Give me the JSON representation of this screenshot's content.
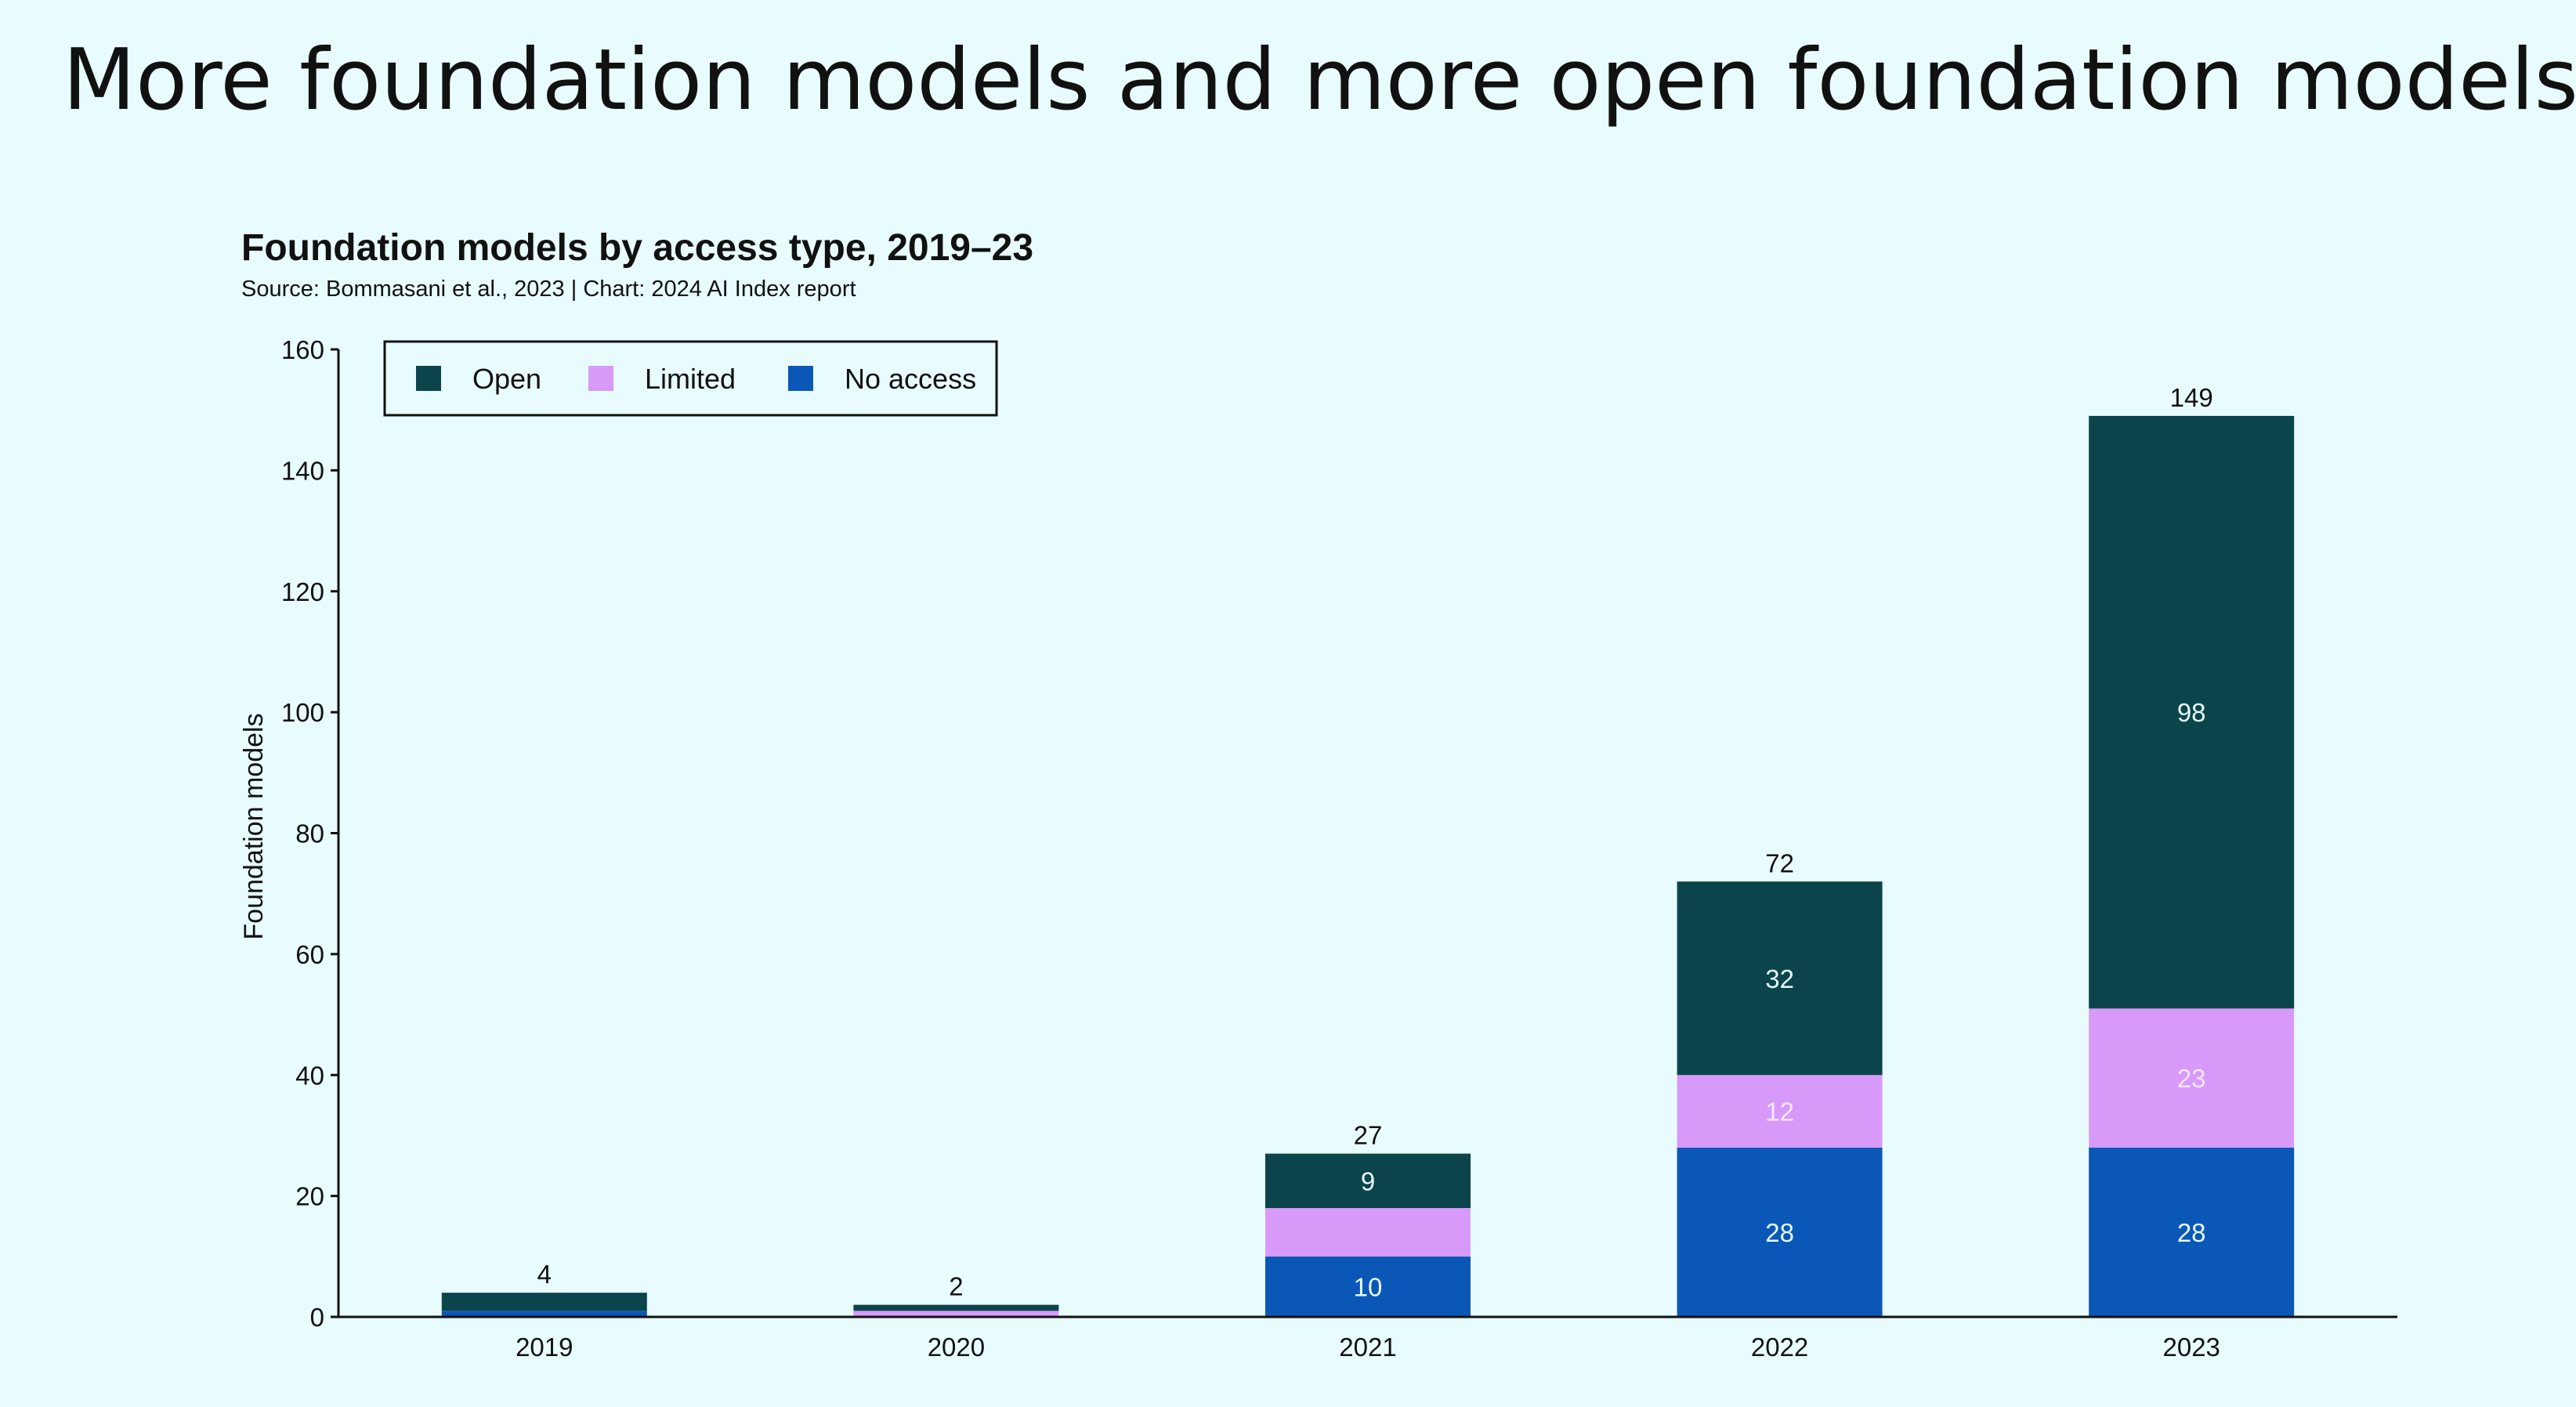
{
  "slide": {
    "title": "More foundation models and more open foundation models"
  },
  "chart_data": {
    "type": "bar",
    "stacked": true,
    "title": "Foundation models by access type, 2019–23",
    "subtitle": "Source: Bommasani et al., 2023 | Chart: 2024 AI Index report",
    "xlabel": "",
    "ylabel": "Foundation models",
    "ylim": [
      0,
      160
    ],
    "yticks": [
      0,
      20,
      40,
      60,
      80,
      100,
      120,
      140,
      160
    ],
    "grid": false,
    "legend_position": "top-left",
    "categories": [
      "2019",
      "2020",
      "2021",
      "2022",
      "2023"
    ],
    "series": [
      {
        "name": "No access",
        "color": "#0b57b7",
        "values": [
          1,
          0,
          10,
          28,
          28
        ],
        "labels": [
          "",
          "",
          "10",
          "28",
          "28"
        ]
      },
      {
        "name": "Limited",
        "color": "#d89af8",
        "values": [
          0,
          1,
          8,
          12,
          23
        ],
        "labels": [
          "",
          "",
          "",
          "12",
          "23"
        ]
      },
      {
        "name": "Open",
        "color": "#0c444c",
        "values": [
          3,
          1,
          9,
          32,
          98
        ],
        "labels": [
          "",
          "",
          "9",
          "32",
          "98"
        ]
      }
    ],
    "legend_order": [
      "Open",
      "Limited",
      "No access"
    ],
    "totals": [
      "4",
      "2",
      "27",
      "72",
      "149"
    ]
  }
}
